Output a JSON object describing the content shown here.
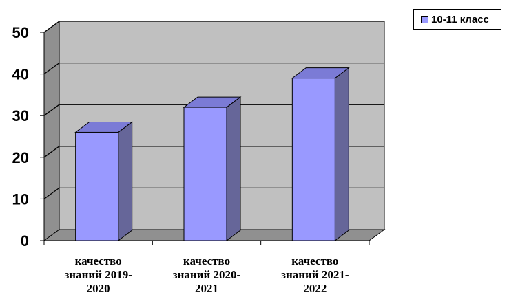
{
  "chart_data": {
    "type": "bar",
    "categories": [
      "качество знаний 2019-2020",
      "качество знаний 2020-2021",
      "качество знаний 2021-2022"
    ],
    "category_lines": [
      [
        "качество",
        "знаний 2019-",
        "2020"
      ],
      [
        "качество",
        "знаний 2020-",
        "2021"
      ],
      [
        "качество",
        "знаний 2021-",
        "2022"
      ]
    ],
    "series": [
      {
        "name": "10-11 класс",
        "values": [
          26,
          32,
          39
        ]
      }
    ],
    "ylim": [
      0,
      50
    ],
    "yticks": [
      0,
      10,
      20,
      30,
      40,
      50
    ],
    "grid": true,
    "legend_position": "top-right",
    "colors": {
      "bar_front": "#9999ff",
      "bar_side": "#666699",
      "bar_top": "#7b7bd6",
      "wall": "#c0c0c0",
      "floor": "#909090"
    }
  }
}
